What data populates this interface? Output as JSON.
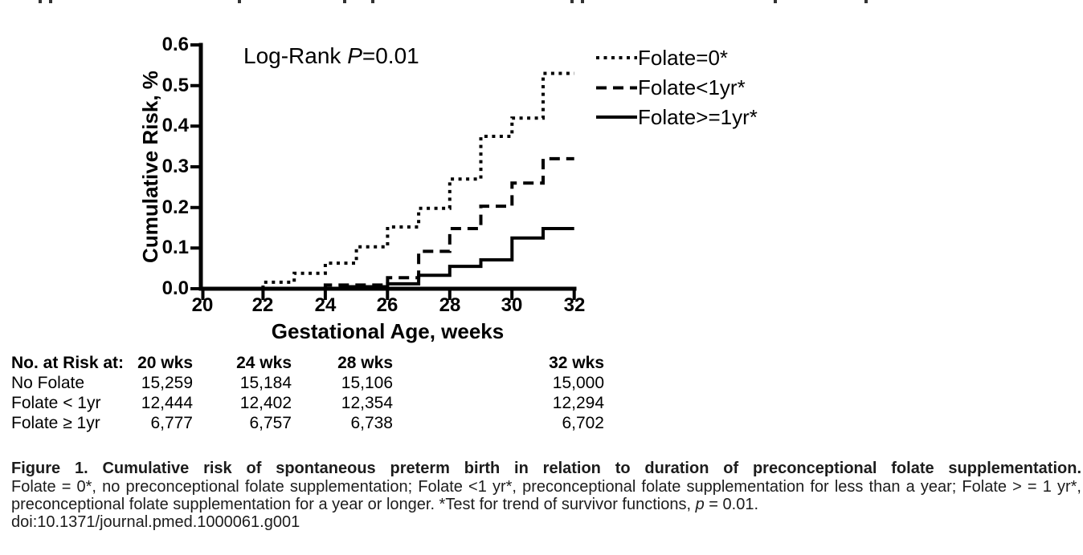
{
  "chart": {
    "annotation": {
      "prefix": "Log-Rank ",
      "italic_var": "P",
      "suffix": "=0.01"
    },
    "y_axis": {
      "title": "Cumulative Risk, %",
      "ticks": [
        "0.6",
        "0.5",
        "0.4",
        "0.3",
        "0.2",
        "0.1",
        "0.0"
      ]
    },
    "x_axis": {
      "title": "Gestational Age, weeks",
      "ticks": [
        "20",
        "22",
        "24",
        "26",
        "28",
        "30",
        "32"
      ]
    },
    "legend": [
      {
        "label": "Folate=0*",
        "style": "dotted"
      },
      {
        "label": "Folate<1yr*",
        "style": "dashed"
      },
      {
        "label": "Folate>=1yr*",
        "style": "solid"
      }
    ],
    "line_color": "#000000"
  },
  "chart_data": {
    "type": "line",
    "subtype": "step-cumulative-incidence",
    "title": "",
    "xlabel": "Gestational Age, weeks",
    "ylabel": "Cumulative Risk, %",
    "xlim": [
      20,
      32
    ],
    "ylim": [
      0,
      0.6
    ],
    "x_ticks": [
      20,
      22,
      24,
      26,
      28,
      30,
      32
    ],
    "y_ticks": [
      0.0,
      0.1,
      0.2,
      0.3,
      0.4,
      0.5,
      0.6
    ],
    "grid": false,
    "legend_position": "upper right outside",
    "annotation": "Log-Rank P=0.01",
    "series": [
      {
        "name": "Folate=0*",
        "line_style": "dotted",
        "end_week": 32,
        "steps": [
          [
            22,
            0.016
          ],
          [
            23,
            0.038
          ],
          [
            24,
            0.063
          ],
          [
            25,
            0.103
          ],
          [
            26,
            0.152
          ],
          [
            27,
            0.198
          ],
          [
            28,
            0.27
          ],
          [
            29,
            0.375
          ],
          [
            30,
            0.42
          ],
          [
            31,
            0.53
          ]
        ]
      },
      {
        "name": "Folate<1yr*",
        "line_style": "dashed",
        "end_week": 32,
        "steps": [
          [
            24,
            0.009
          ],
          [
            26,
            0.027
          ],
          [
            27,
            0.092
          ],
          [
            28,
            0.148
          ],
          [
            29,
            0.203
          ],
          [
            30,
            0.26
          ],
          [
            31,
            0.32
          ]
        ]
      },
      {
        "name": "Folate>=1yr*",
        "line_style": "solid",
        "end_week": 32,
        "steps": [
          [
            24.5,
            0.005
          ],
          [
            26,
            0.012
          ],
          [
            27,
            0.033
          ],
          [
            28,
            0.055
          ],
          [
            29,
            0.071
          ],
          [
            30,
            0.125
          ],
          [
            31,
            0.148
          ]
        ]
      }
    ]
  },
  "risk_table": {
    "header": {
      "label": "No. at Risk at:",
      "cols": [
        "20 wks",
        "24 wks",
        "28 wks",
        "32 wks"
      ]
    },
    "rows": [
      {
        "label": "No Folate",
        "values": [
          "15,259",
          "15,184",
          "15,106",
          "15,000"
        ]
      },
      {
        "label": "Folate < 1yr",
        "values": [
          "12,444",
          "12,402",
          "12,354",
          "12,294"
        ]
      },
      {
        "label": "Folate ≥ 1yr",
        "values": [
          "6,777",
          "6,757",
          "6,738",
          "6,702"
        ]
      }
    ]
  },
  "caption": {
    "line1_bold": "Figure 1. Cumulative risk of spontaneous preterm birth in relation to duration of preconceptional folate supplementation.",
    "line2": "Folate = 0*, no preconceptional folate supplementation; Folate <1 yr*, preconceptional folate supplementation for less than a year; Folate > = 1 yr*,",
    "line3_prefix": "preconceptional folate supplementation for a year or longer. *Test for trend of survivor functions, ",
    "line3_italic_var": "p",
    "line3_suffix": " = 0.01.",
    "line4_doi": "doi:10.1371/journal.pmed.1000061.g001"
  }
}
